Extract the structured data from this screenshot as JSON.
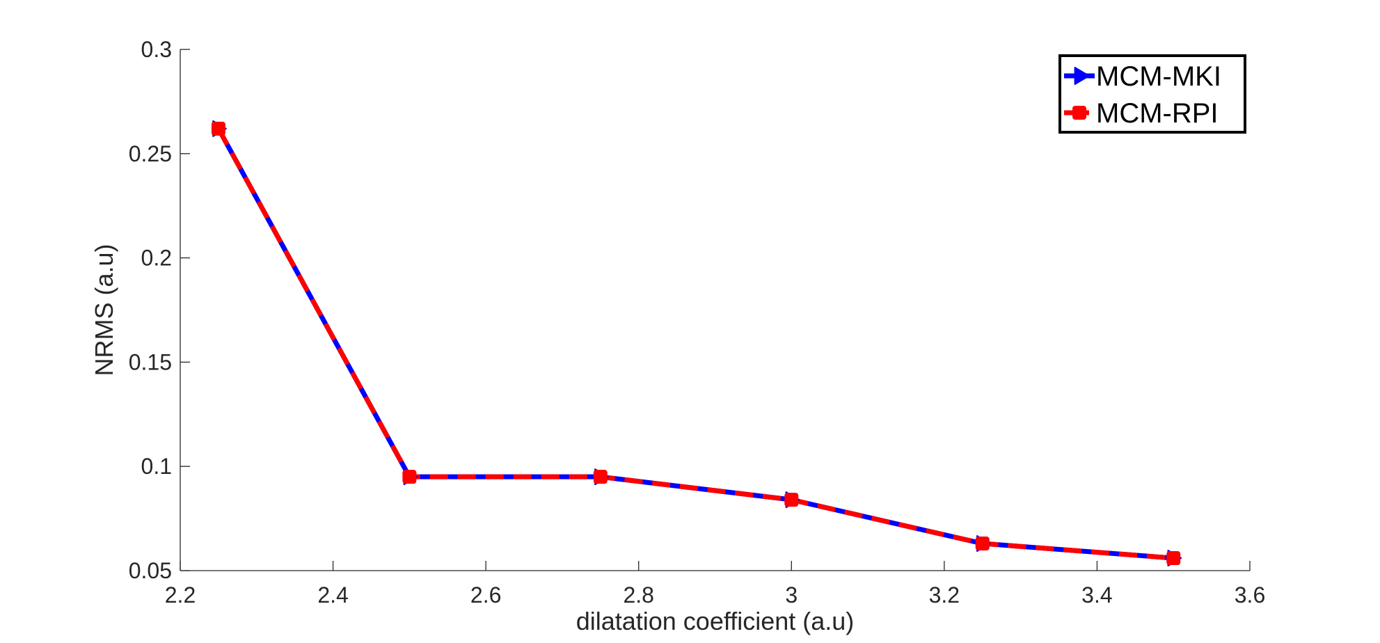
{
  "chart_data": {
    "type": "line",
    "title": "",
    "xlabel": "dilatation coefficient (a.u)",
    "ylabel": "NRMS (a.u)",
    "xlim": [
      2.2,
      3.6
    ],
    "ylim": [
      0.05,
      0.3
    ],
    "xticks": [
      2.2,
      2.4,
      2.6,
      2.8,
      3.0,
      3.2,
      3.4,
      3.6
    ],
    "xtick_labels": [
      "2.2",
      "2.4",
      "2.6",
      "2.8",
      "3",
      "3.2",
      "3.4",
      "3.6"
    ],
    "yticks": [
      0.05,
      0.1,
      0.15,
      0.2,
      0.25,
      0.3
    ],
    "ytick_labels": [
      "0.05",
      "0.1",
      "0.15",
      "0.2",
      "0.25",
      "0.3"
    ],
    "grid": false,
    "legend_position": "top-right",
    "x": [
      2.25,
      2.5,
      2.75,
      3.0,
      3.25,
      3.5
    ],
    "series": [
      {
        "name": "MCM-MKI",
        "values": [
          0.262,
          0.095,
          0.095,
          0.084,
          0.063,
          0.056
        ],
        "color": "#0000ff",
        "marker": "triangle-right",
        "line_style": "solid"
      },
      {
        "name": "MCM-RPI",
        "values": [
          0.262,
          0.095,
          0.095,
          0.084,
          0.063,
          0.056
        ],
        "color": "#ff0000",
        "marker": "square",
        "line_style": "dashed"
      }
    ]
  }
}
